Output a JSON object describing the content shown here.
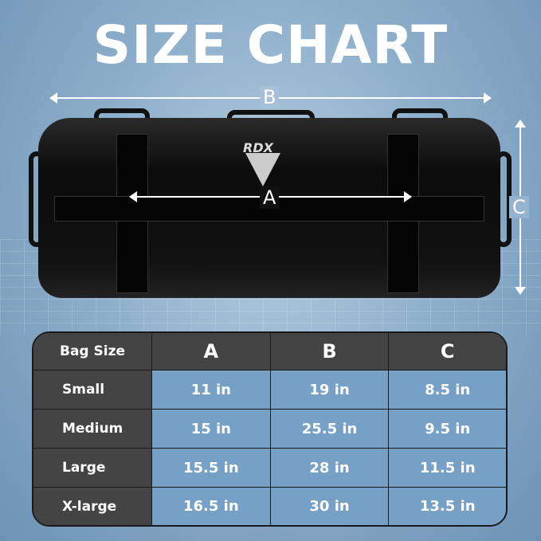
{
  "title": "SIZE CHART",
  "brand": "RDX",
  "dimension_labels": {
    "a": "A",
    "b": "B",
    "c": "C"
  },
  "table": {
    "headers": [
      "Bag Size",
      "A",
      "B",
      "C"
    ],
    "rows": [
      {
        "size": "Small",
        "a": "11 in",
        "b": "19 in",
        "c": "8.5 in"
      },
      {
        "size": "Medium",
        "a": "15 in",
        "b": "25.5 in",
        "c": "9.5 in"
      },
      {
        "size": "Large",
        "a": "15.5 in",
        "b": "28 in",
        "c": "11.5 in"
      },
      {
        "size": "X-large",
        "a": "16.5 in",
        "b": "30 in",
        "c": "13.5 in"
      }
    ]
  }
}
